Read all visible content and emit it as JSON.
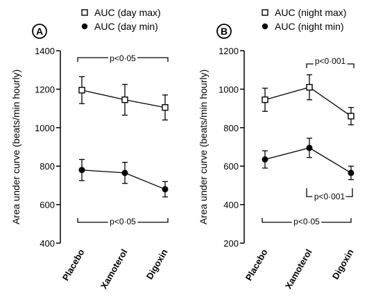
{
  "chart_data": [
    {
      "type": "line",
      "panel_label": "A",
      "ylabel": "Area under curve (beats/min hourly)",
      "ylim": [
        400,
        1400
      ],
      "yticks": [
        400,
        600,
        800,
        1000,
        1200,
        1400
      ],
      "categories": [
        "Placebo",
        "Xamoterol",
        "Digoxin"
      ],
      "series": [
        {
          "name": "AUC (day max)",
          "marker": "open-square",
          "values": [
            1195,
            1145,
            1105
          ],
          "errors": [
            70,
            80,
            65
          ]
        },
        {
          "name": "AUC (day min)",
          "marker": "filled-circle",
          "values": [
            780,
            765,
            680
          ],
          "errors": [
            55,
            55,
            40
          ]
        }
      ],
      "annotations": [
        {
          "text": "p<0·05",
          "from": 0,
          "to": 2,
          "series": 0
        },
        {
          "text": "p<0·05",
          "from": 0,
          "to": 2,
          "series": 1
        }
      ]
    },
    {
      "type": "line",
      "panel_label": "B",
      "ylabel": "Area under curve (beats/min hourly)",
      "ylim": [
        200,
        1200
      ],
      "yticks": [
        200,
        400,
        600,
        800,
        1000,
        1200
      ],
      "categories": [
        "Placebo",
        "Xamoterol",
        "Digoxin"
      ],
      "series": [
        {
          "name": "AUC (night max)",
          "marker": "open-square",
          "values": [
            945,
            1010,
            860
          ],
          "errors": [
            60,
            65,
            45
          ]
        },
        {
          "name": "AUC (night min)",
          "marker": "filled-circle",
          "values": [
            635,
            695,
            565
          ],
          "errors": [
            45,
            50,
            35
          ]
        }
      ],
      "annotations": [
        {
          "text": "p<0·001",
          "from": 1,
          "to": 2,
          "series": 0
        },
        {
          "text": "p<0·001",
          "from": 1,
          "to": 2,
          "series": 1
        },
        {
          "text": "p<0·05",
          "from": 0,
          "to": 2,
          "series": 1
        }
      ]
    }
  ]
}
